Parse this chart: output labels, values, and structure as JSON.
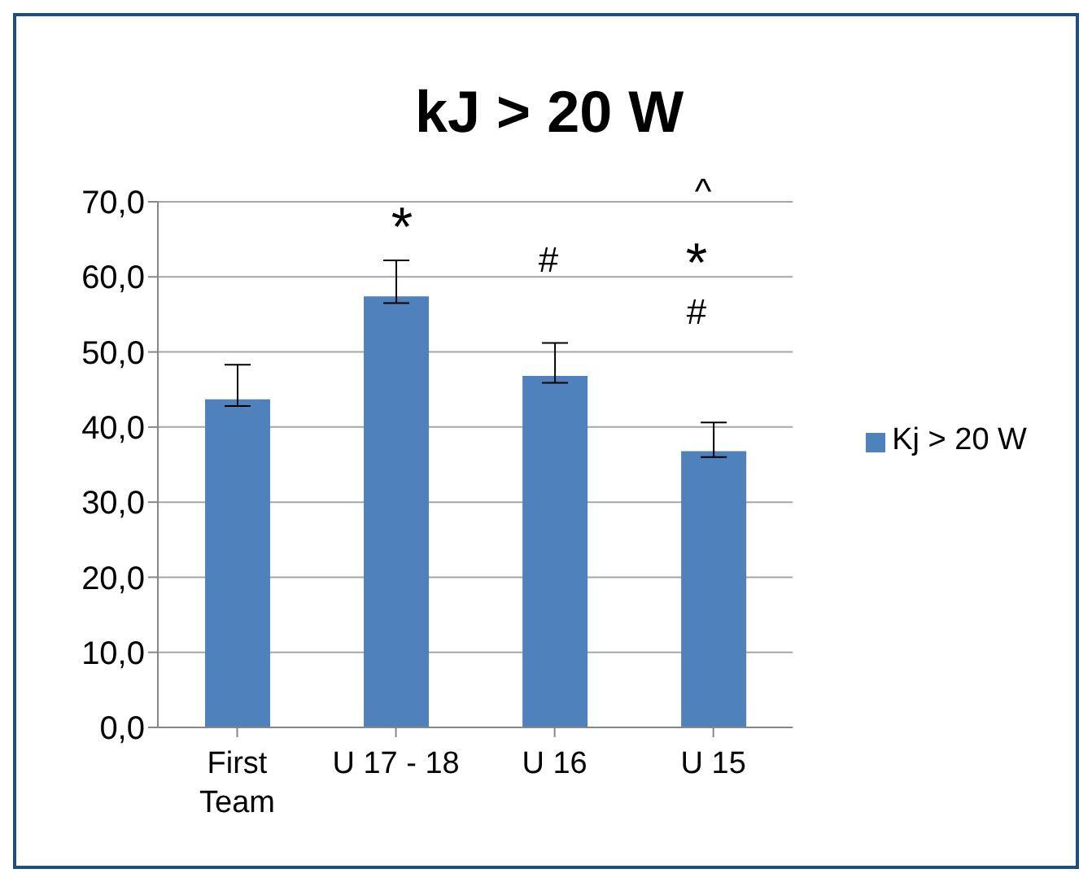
{
  "chart_data": {
    "type": "bar",
    "title": "kJ > 20 W",
    "categories": [
      "First Team",
      "U 17 - 18",
      "U 16",
      "U 15"
    ],
    "series": [
      {
        "name": "Kj > 20 W",
        "color": "#4f81bd",
        "values": [
          43.7,
          57.4,
          46.8,
          36.8
        ],
        "errors": [
          [
            42.8,
            48.3
          ],
          [
            56.5,
            62.2
          ],
          [
            45.9,
            51.2
          ],
          [
            36.0,
            40.6
          ]
        ]
      }
    ],
    "ylim": [
      0,
      70
    ],
    "yticks": [
      {
        "value": 0,
        "label": "0,0"
      },
      {
        "value": 10,
        "label": "10,0"
      },
      {
        "value": 20,
        "label": "20,0"
      },
      {
        "value": 30,
        "label": "30,0"
      },
      {
        "value": 40,
        "label": "40,0"
      },
      {
        "value": 50,
        "label": "50,0"
      },
      {
        "value": 60,
        "label": "60,0"
      },
      {
        "value": 70,
        "label": "70,0"
      }
    ],
    "grid": "y",
    "legend": "right",
    "annotations": [
      "*",
      "#",
      "^",
      "*",
      "#"
    ]
  }
}
